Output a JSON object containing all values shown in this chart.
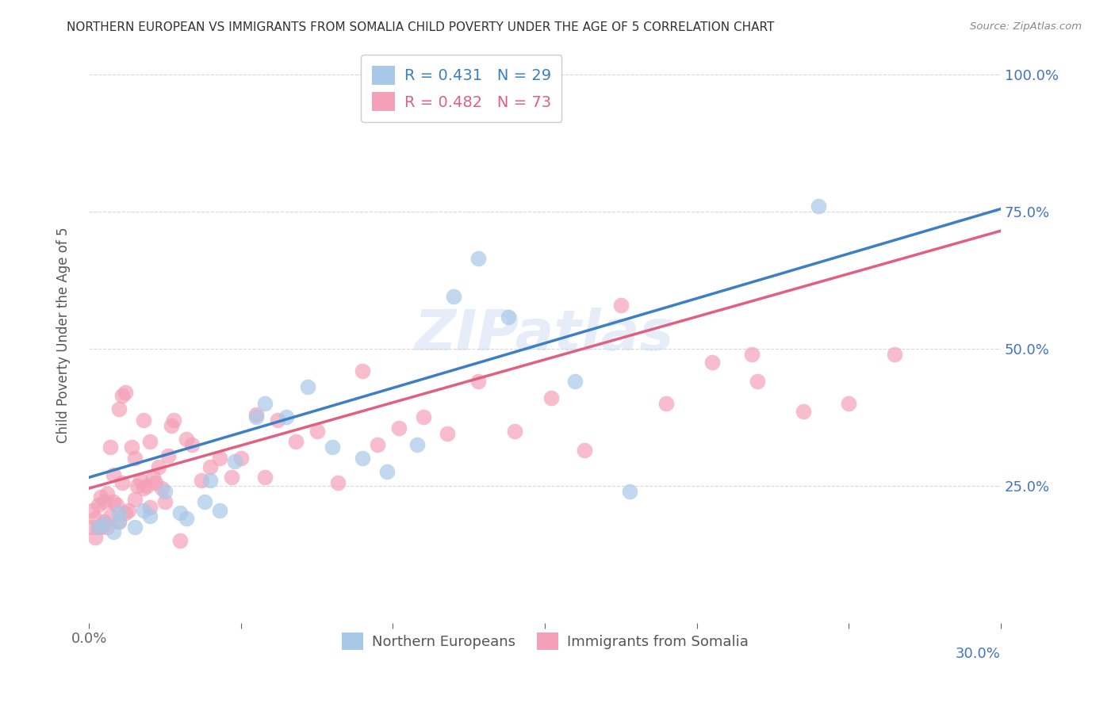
{
  "title": "NORTHERN EUROPEAN VS IMMIGRANTS FROM SOMALIA CHILD POVERTY UNDER THE AGE OF 5 CORRELATION CHART",
  "source": "Source: ZipAtlas.com",
  "ylabel": "Child Poverty Under the Age of 5",
  "x_min": 0.0,
  "x_max": 0.3,
  "y_min": 0.0,
  "y_max": 1.05,
  "x_ticks": [
    0.0,
    0.05,
    0.1,
    0.15,
    0.2,
    0.25,
    0.3
  ],
  "y_ticks": [
    0.25,
    0.5,
    0.75,
    1.0
  ],
  "y_tick_labels": [
    "25.0%",
    "50.0%",
    "75.0%",
    "100.0%"
  ],
  "blue_color": "#a8c8e8",
  "pink_color": "#f4a0b8",
  "blue_line_color": "#3b7fc4",
  "pink_line_color": "#e06080",
  "legend_text_blue": "R = 0.431   N = 29",
  "legend_text_pink": "R = 0.482   N = 73",
  "label_blue": "Northern Europeans",
  "label_pink": "Immigrants from Somalia",
  "watermark": "ZIPatlas",
  "blue_line_x": [
    0.0,
    0.3
  ],
  "blue_line_y": [
    0.265,
    0.755
  ],
  "pink_line_x": [
    0.0,
    0.3
  ],
  "pink_line_y": [
    0.245,
    0.715
  ],
  "blue_scatter_x": [
    0.003,
    0.005,
    0.008,
    0.01,
    0.01,
    0.015,
    0.018,
    0.02,
    0.025,
    0.03,
    0.032,
    0.038,
    0.04,
    0.043,
    0.048,
    0.055,
    0.058,
    0.065,
    0.072,
    0.08,
    0.09,
    0.098,
    0.108,
    0.12,
    0.128,
    0.138,
    0.16,
    0.178,
    0.24
  ],
  "blue_scatter_y": [
    0.175,
    0.18,
    0.165,
    0.2,
    0.185,
    0.175,
    0.205,
    0.195,
    0.24,
    0.2,
    0.19,
    0.22,
    0.26,
    0.205,
    0.295,
    0.375,
    0.4,
    0.375,
    0.43,
    0.32,
    0.3,
    0.275,
    0.325,
    0.595,
    0.665,
    0.558,
    0.44,
    0.24,
    0.76
  ],
  "pink_scatter_x": [
    0.001,
    0.001,
    0.002,
    0.002,
    0.003,
    0.003,
    0.004,
    0.004,
    0.005,
    0.005,
    0.006,
    0.006,
    0.007,
    0.007,
    0.008,
    0.008,
    0.009,
    0.01,
    0.01,
    0.011,
    0.011,
    0.012,
    0.012,
    0.013,
    0.014,
    0.015,
    0.015,
    0.016,
    0.017,
    0.018,
    0.018,
    0.019,
    0.02,
    0.02,
    0.021,
    0.022,
    0.023,
    0.024,
    0.025,
    0.026,
    0.027,
    0.028,
    0.03,
    0.032,
    0.034,
    0.037,
    0.04,
    0.043,
    0.047,
    0.05,
    0.055,
    0.058,
    0.062,
    0.068,
    0.075,
    0.082,
    0.09,
    0.095,
    0.102,
    0.11,
    0.118,
    0.128,
    0.14,
    0.152,
    0.163,
    0.175,
    0.19,
    0.205,
    0.22,
    0.235,
    0.25,
    0.265,
    0.218
  ],
  "pink_scatter_y": [
    0.175,
    0.205,
    0.155,
    0.19,
    0.175,
    0.215,
    0.175,
    0.23,
    0.185,
    0.22,
    0.175,
    0.235,
    0.195,
    0.32,
    0.22,
    0.27,
    0.215,
    0.185,
    0.39,
    0.255,
    0.415,
    0.2,
    0.42,
    0.205,
    0.32,
    0.225,
    0.3,
    0.25,
    0.26,
    0.245,
    0.37,
    0.25,
    0.21,
    0.33,
    0.265,
    0.255,
    0.285,
    0.245,
    0.22,
    0.305,
    0.36,
    0.37,
    0.15,
    0.335,
    0.325,
    0.26,
    0.285,
    0.3,
    0.265,
    0.3,
    0.38,
    0.265,
    0.37,
    0.33,
    0.35,
    0.255,
    0.46,
    0.325,
    0.355,
    0.375,
    0.345,
    0.44,
    0.35,
    0.41,
    0.315,
    0.58,
    0.4,
    0.475,
    0.44,
    0.385,
    0.4,
    0.49,
    0.49
  ],
  "grid_color": "#d8d8d8",
  "background_color": "#ffffff",
  "title_color": "#333333",
  "axis_label_color": "#555555",
  "tick_color_right": "#4472C4"
}
